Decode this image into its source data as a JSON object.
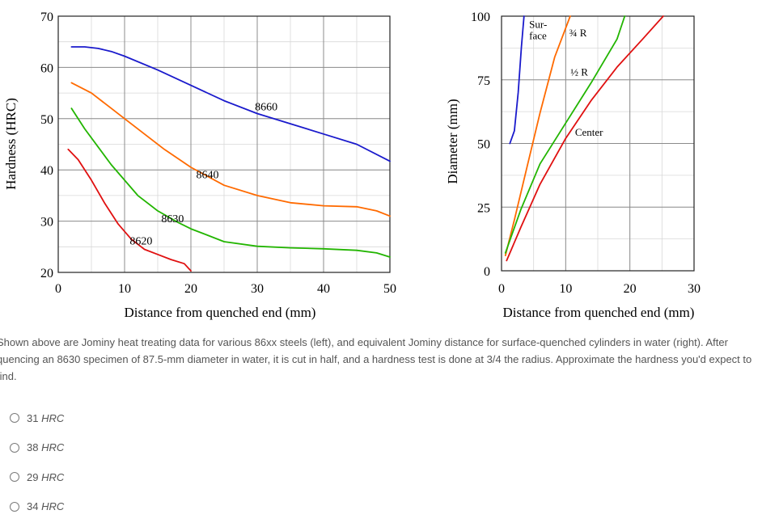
{
  "chart_data": [
    {
      "type": "line",
      "title": "",
      "xlabel": "Distance from quenched end (mm)",
      "ylabel": "Hardness (HRC)",
      "xlim": [
        0,
        50
      ],
      "ylim": [
        20,
        70
      ],
      "xticks": [
        0,
        10,
        20,
        30,
        40,
        50
      ],
      "yticks": [
        20,
        30,
        40,
        50,
        60,
        70
      ],
      "grid": true,
      "series": [
        {
          "name": "8660",
          "color": "#1a1acc",
          "x": [
            2,
            4,
            6,
            8,
            10,
            15,
            20,
            25,
            30,
            35,
            40,
            45,
            50
          ],
          "y": [
            64,
            64,
            63.7,
            63.1,
            62.2,
            59.5,
            56.5,
            53.5,
            51,
            49,
            47,
            45,
            41.7
          ]
        },
        {
          "name": "8640",
          "color": "#ff6a00",
          "x": [
            2,
            5,
            8,
            10,
            13,
            16,
            20,
            25,
            30,
            35,
            40,
            45,
            48,
            50
          ],
          "y": [
            57,
            55,
            52,
            50,
            47,
            44,
            40.5,
            37,
            35,
            33.6,
            33,
            32.8,
            32,
            31
          ]
        },
        {
          "name": "8630",
          "color": "#22b500",
          "x": [
            2,
            4,
            6,
            8,
            10,
            12,
            15,
            18,
            20,
            22,
            25,
            30,
            35,
            40,
            45,
            48,
            50
          ],
          "y": [
            52,
            48,
            44.5,
            41,
            38,
            35,
            32,
            29.8,
            28.5,
            27.5,
            26,
            25.1,
            24.8,
            24.6,
            24.3,
            23.8,
            23
          ]
        },
        {
          "name": "8620",
          "color": "#e01010",
          "x": [
            1.5,
            3,
            5,
            7,
            9,
            11,
            13,
            15,
            17,
            19,
            20
          ],
          "y": [
            44,
            42,
            38,
            33.5,
            29.5,
            26.5,
            24.5,
            23.5,
            22.5,
            21.7,
            20.3
          ]
        }
      ]
    },
    {
      "type": "line",
      "title": "",
      "xlabel": "Distance from quenched end (mm)",
      "ylabel": "Diameter (mm)",
      "xlim": [
        0,
        30
      ],
      "ylim": [
        0,
        100
      ],
      "xticks": [
        0,
        10,
        20,
        30
      ],
      "yticks": [
        0,
        25,
        50,
        75,
        100
      ],
      "grid": true,
      "series": [
        {
          "name": "Sur-face",
          "color": "#1a1acc",
          "x": [
            1.3,
            2,
            2.6,
            3.1,
            3.5
          ],
          "y": [
            50,
            55,
            70,
            88,
            100
          ]
        },
        {
          "name": "¾ R",
          "color": "#ff6a00",
          "x": [
            0.6,
            2,
            4,
            6,
            8.3,
            10.7
          ],
          "y": [
            6,
            20,
            41,
            62,
            84,
            100
          ]
        },
        {
          "name": "½ R",
          "color": "#22b500",
          "x": [
            0.6,
            3,
            6,
            10,
            14,
            18,
            19.2
          ],
          "y": [
            7,
            24,
            42,
            58,
            74,
            91,
            100
          ]
        },
        {
          "name": "Center",
          "color": "#e01010",
          "x": [
            0.8,
            3,
            6,
            10,
            14,
            18,
            22,
            25.2
          ],
          "y": [
            4,
            17,
            34,
            52,
            67,
            80,
            91,
            100
          ]
        }
      ]
    }
  ],
  "question": {
    "text": "Shown above are Jominy heat treating data for various 86xx steels (left), and equivalent Jominy distance for surface-quenched cylinders in water (right). After quencing an 8630 specimen of 87.5-mm diameter in water, it is cut in half, and a hardness test is done at 3/4 the radius. Approximate the hardness you'd expect to find."
  },
  "options": [
    {
      "value": "31",
      "unit": "HRC"
    },
    {
      "value": "38",
      "unit": "HRC"
    },
    {
      "value": "29",
      "unit": "HRC"
    },
    {
      "value": "34",
      "unit": "HRC"
    }
  ]
}
